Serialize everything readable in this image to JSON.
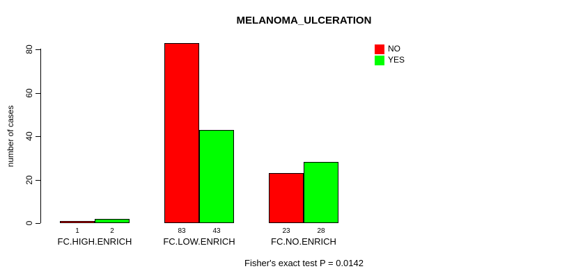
{
  "title": "MELANOMA_ULCERATION",
  "y_axis": {
    "label": "number of cases"
  },
  "legend": {
    "items": [
      {
        "label": "NO",
        "color": "#ff0000"
      },
      {
        "label": "YES",
        "color": "#00ff00"
      }
    ]
  },
  "footer": "Fisher's exact test P = 0.0142",
  "colors": {
    "bar_border": "#000000",
    "axis": "#000000",
    "background": "#ffffff"
  },
  "chart_data": {
    "type": "bar",
    "grouped": true,
    "title": "MELANOMA_ULCERATION",
    "xlabel": "",
    "ylabel": "number of cases",
    "categories": [
      "FC.HIGH.ENRICH",
      "FC.LOW.ENRICH",
      "FC.NO.ENRICH"
    ],
    "series": [
      {
        "name": "NO",
        "color": "#ff0000",
        "values": [
          1,
          83,
          23
        ]
      },
      {
        "name": "YES",
        "color": "#00ff00",
        "values": [
          2,
          43,
          28
        ]
      }
    ],
    "bar_value_labels": [
      [
        "1",
        "2"
      ],
      [
        "83",
        "43"
      ],
      [
        "23",
        "28"
      ]
    ],
    "ylim": [
      0,
      80
    ],
    "yticks": [
      0,
      20,
      40,
      60,
      80
    ],
    "grid": false,
    "legend_position": "top-right",
    "annotation": "Fisher's exact test P = 0.0142"
  }
}
